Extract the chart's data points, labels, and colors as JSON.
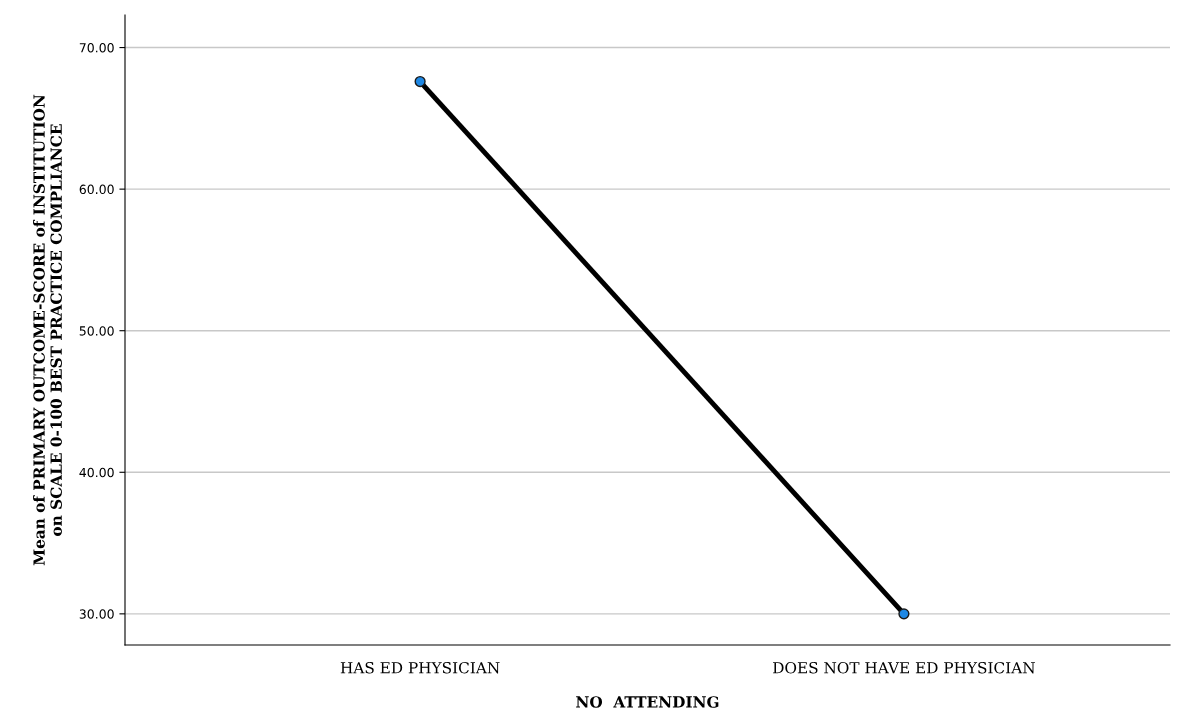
{
  "chart_data": {
    "type": "line",
    "categories": [
      "HAS ED PHYSICIAN",
      "DOES NOT HAVE ED PHYSICIAN"
    ],
    "series": [
      {
        "color": "#000000",
        "colors": [
          "#1e88e5",
          "#1e88e5"
        ],
        "values": [
          67.6,
          30.0
        ]
      }
    ],
    "marker": "circle",
    "xlabel": "NO  ATTENDING",
    "ylabel": "Mean of PRIMARY OUTCOME-SCORE of INSTITUTION\non SCALE 0-100 BEST PRACTICE COMPLIANCE",
    "ylim": [
      27.8,
      72.3
    ],
    "yticks": [
      {
        "value": 30,
        "label": "30.00"
      },
      {
        "value": 40,
        "label": "40.00"
      },
      {
        "value": 50,
        "label": "50.00"
      },
      {
        "value": 60,
        "label": "60.00"
      },
      {
        "value": 70,
        "label": "70.00"
      }
    ],
    "grid": "y"
  }
}
